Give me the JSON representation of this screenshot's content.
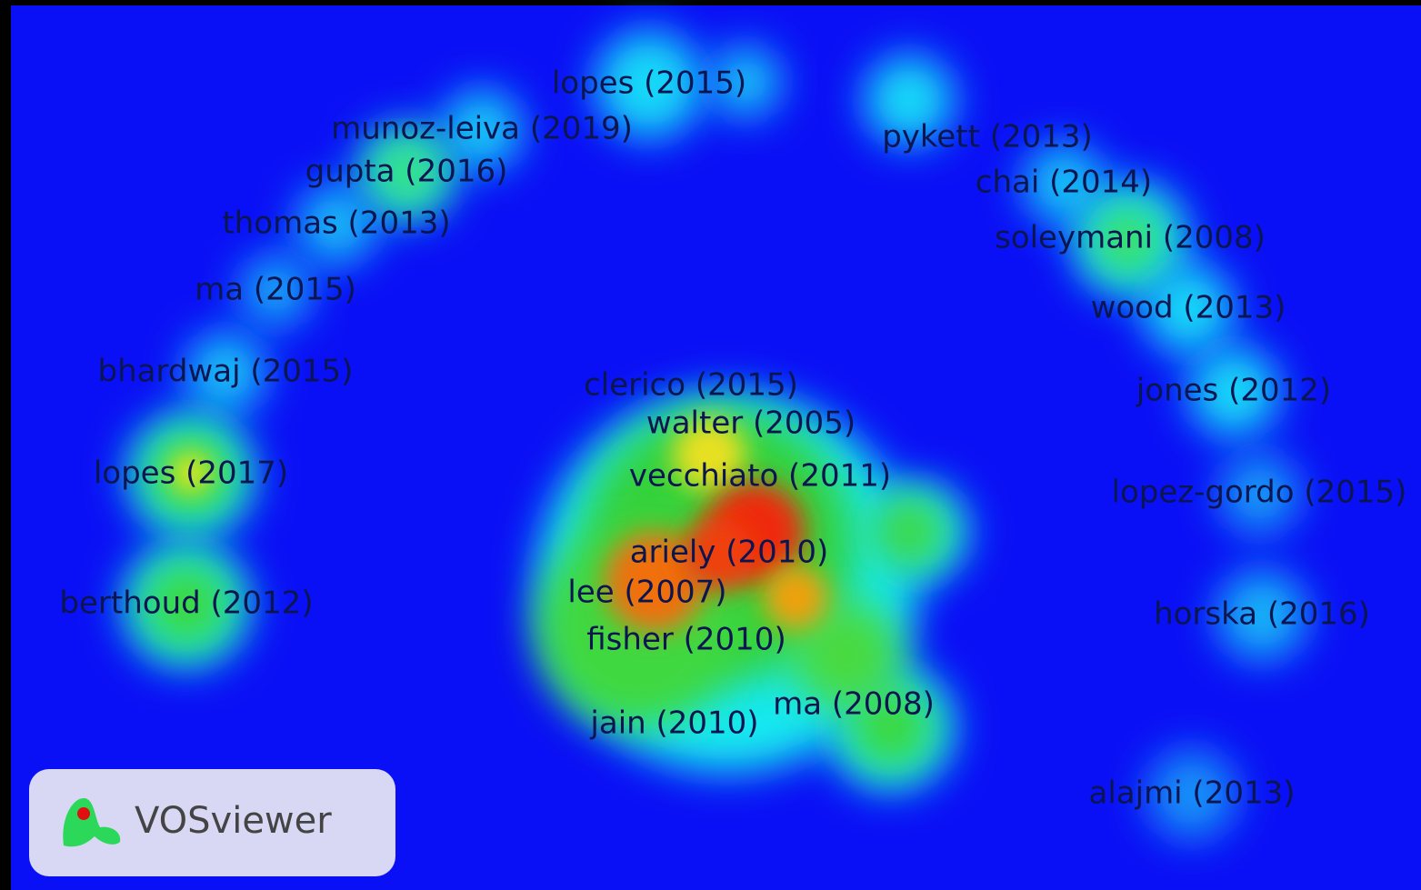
{
  "nodes": [
    {
      "label": "lopes (2015)"
    },
    {
      "label": "munoz-leiva (2019)"
    },
    {
      "label": "gupta (2016)"
    },
    {
      "label": "thomas (2013)"
    },
    {
      "label": "ma (2015)"
    },
    {
      "label": "bhardwaj (2015)"
    },
    {
      "label": "lopes (2017)"
    },
    {
      "label": "berthoud (2012)"
    },
    {
      "label": "pykett (2013)"
    },
    {
      "label": "chai (2014)"
    },
    {
      "label": "soleymani (2008)"
    },
    {
      "label": "wood (2013)"
    },
    {
      "label": "jones (2012)"
    },
    {
      "label": "lopez-gordo (2015)"
    },
    {
      "label": "horska (2016)"
    },
    {
      "label": "alajmi (2013)"
    },
    {
      "label": "clerico (2015)"
    },
    {
      "label": "walter (2005)"
    },
    {
      "label": "vecchiato (2011)"
    },
    {
      "label": "ariely (2010)"
    },
    {
      "label": "lee (2007)"
    },
    {
      "label": "fisher (2010)"
    },
    {
      "label": "jain (2010)"
    },
    {
      "label": "ma (2008)"
    }
  ],
  "logo": {
    "text": "VOSviewer"
  }
}
